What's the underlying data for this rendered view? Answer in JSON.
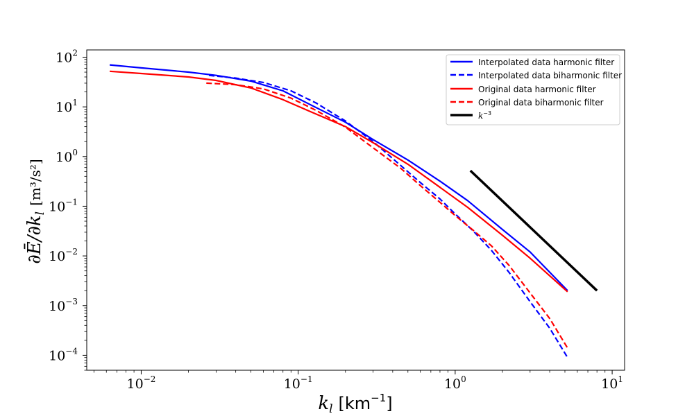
{
  "chart_data": {
    "type": "line",
    "xscale": "log",
    "yscale": "log",
    "xlim": [
      0.0045,
      12
    ],
    "ylim": [
      5e-05,
      140
    ],
    "xlabel": {
      "base": "k",
      "sub": "l",
      "unit": "[km",
      "unit_exp": "−1",
      "unit_close": "]"
    },
    "ylabel": "∂Ē/∂k",
    "ylabel_sub": "l",
    "ylabel_unit": "[m³/s²]",
    "x_ticks": [
      {
        "value": 0.01,
        "base": "10",
        "exp": "−2"
      },
      {
        "value": 0.1,
        "base": "10",
        "exp": "−1"
      },
      {
        "value": 1,
        "base": "10",
        "exp": "0"
      },
      {
        "value": 10,
        "base": "10",
        "exp": "1"
      }
    ],
    "y_ticks": [
      {
        "value": 0.0001,
        "base": "10",
        "exp": "−4"
      },
      {
        "value": 0.001,
        "base": "10",
        "exp": "−3"
      },
      {
        "value": 0.01,
        "base": "10",
        "exp": "−2"
      },
      {
        "value": 0.1,
        "base": "10",
        "exp": "−1"
      },
      {
        "value": 1,
        "base": "10",
        "exp": "0"
      },
      {
        "value": 10,
        "base": "10",
        "exp": "1"
      },
      {
        "value": 100,
        "base": "10",
        "exp": "2"
      }
    ],
    "legend_position": "top-right",
    "series": [
      {
        "name": "Interpolated data harmonic filter",
        "color": "#0000ff",
        "dash": "solid",
        "x": [
          0.0063,
          0.01,
          0.02,
          0.03,
          0.05,
          0.08,
          0.12,
          0.2,
          0.3,
          0.5,
          0.8,
          1.2,
          2,
          3,
          5.2
        ],
        "y": [
          70,
          61,
          50,
          43,
          33,
          21,
          11,
          4.9,
          2.2,
          0.85,
          0.32,
          0.13,
          0.034,
          0.012,
          0.002
        ]
      },
      {
        "name": "Interpolated data biharmonic filter",
        "color": "#0000ff",
        "dash": "dashed",
        "x": [
          0.027,
          0.04,
          0.06,
          0.09,
          0.13,
          0.2,
          0.3,
          0.45,
          0.6,
          0.8,
          1.0,
          1.3,
          1.7,
          2.2,
          3,
          4,
          5.2
        ],
        "y": [
          43,
          38,
          31,
          21,
          12,
          5.2,
          2.0,
          0.66,
          0.3,
          0.14,
          0.07,
          0.032,
          0.013,
          0.0047,
          0.0012,
          0.00035,
          9e-05
        ]
      },
      {
        "name": "Original data harmonic filter",
        "color": "#ff0000",
        "dash": "solid",
        "x": [
          0.0063,
          0.01,
          0.02,
          0.03,
          0.05,
          0.08,
          0.12,
          0.2,
          0.3,
          0.5,
          0.8,
          1.2,
          2,
          3,
          5.2
        ],
        "y": [
          52,
          47,
          40,
          34,
          24,
          14,
          8,
          4.0,
          1.9,
          0.7,
          0.24,
          0.095,
          0.026,
          0.009,
          0.0019
        ]
      },
      {
        "name": "Original data biharmonic filter",
        "color": "#ff0000",
        "dash": "dashed",
        "x": [
          0.026,
          0.04,
          0.06,
          0.09,
          0.13,
          0.2,
          0.3,
          0.45,
          0.6,
          0.8,
          1.0,
          1.3,
          1.7,
          2.2,
          3,
          4,
          5.2
        ],
        "y": [
          30,
          28,
          23,
          15,
          8.5,
          3.9,
          1.5,
          0.58,
          0.26,
          0.12,
          0.065,
          0.033,
          0.016,
          0.0065,
          0.0018,
          0.00055,
          0.00014
        ]
      },
      {
        "name": "k",
        "name_exp": "−3",
        "color": "#000000",
        "dash": "solid",
        "width": 3.5,
        "x": [
          1.25,
          8.0
        ],
        "y": [
          0.52,
          0.002
        ]
      }
    ]
  }
}
